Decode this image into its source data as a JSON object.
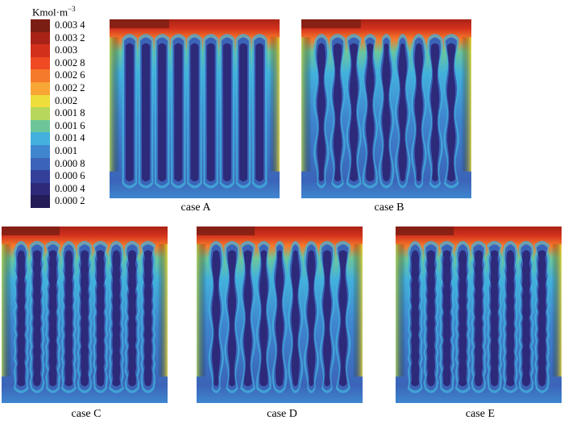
{
  "legend": {
    "unit_base": "Kmol·m",
    "unit_sup": "−3",
    "levels": [
      {
        "label": "0.003 4",
        "color": "#7a1e14"
      },
      {
        "label": "0.003 2",
        "color": "#a82316"
      },
      {
        "label": "0.003",
        "color": "#d3301c"
      },
      {
        "label": "0.002 8",
        "color": "#ef4a23"
      },
      {
        "label": "0.002 6",
        "color": "#f67a2b"
      },
      {
        "label": "0.002 2",
        "color": "#f8a636"
      },
      {
        "label": "0.002",
        "color": "#eedd3a"
      },
      {
        "label": "0.001 8",
        "color": "#b6d75b"
      },
      {
        "label": "0.001 6",
        "color": "#6dc69a"
      },
      {
        "label": "0.001 4",
        "color": "#43b1dc"
      },
      {
        "label": "0.001",
        "color": "#3f86cf"
      },
      {
        "label": "0.000 8",
        "color": "#3b64b8"
      },
      {
        "label": "0.000 6",
        "color": "#333f98"
      },
      {
        "label": "0.000 4",
        "color": "#2d2a7a"
      },
      {
        "label": "0.000 2",
        "color": "#231c57"
      }
    ]
  },
  "panels": [
    {
      "caption": "case A"
    },
    {
      "caption": "case B"
    },
    {
      "caption": "case C"
    },
    {
      "caption": "case D"
    },
    {
      "caption": "case E"
    }
  ]
}
